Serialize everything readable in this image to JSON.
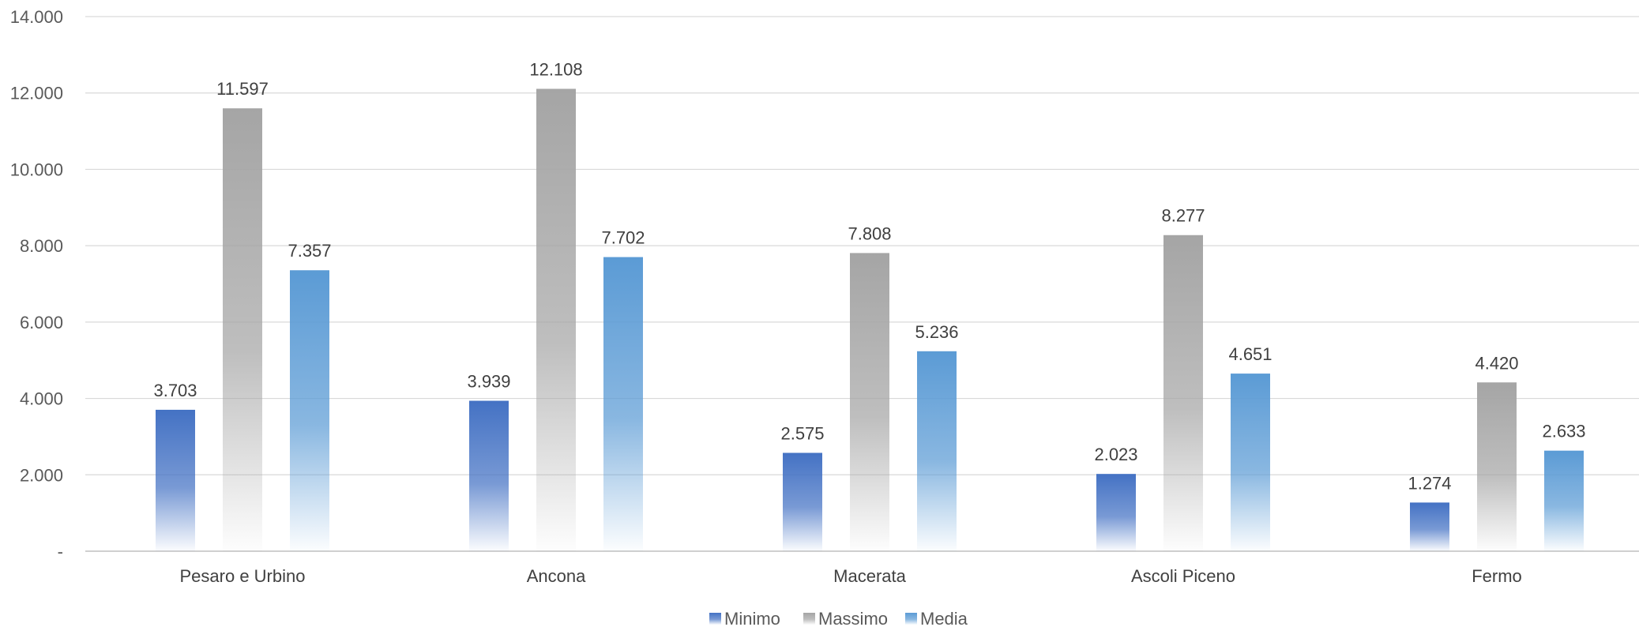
{
  "chart_data": {
    "type": "bar",
    "title": "",
    "xlabel": "",
    "ylabel": "",
    "categories": [
      "Pesaro e Urbino",
      "Ancona",
      "Macerata",
      "Ascoli Piceno",
      "Fermo"
    ],
    "series": [
      {
        "name": "Minimo",
        "values": [
          3703,
          3939,
          2575,
          2023,
          1274
        ],
        "labels": [
          "3.703",
          "3.939",
          "2.575",
          "2.023",
          "1.274"
        ],
        "color": "#4472C4"
      },
      {
        "name": "Massimo",
        "values": [
          11597,
          12108,
          7808,
          8277,
          4420
        ],
        "labels": [
          "11.597",
          "12.108",
          "7.808",
          "8.277",
          "4.420"
        ],
        "color": "#A5A5A5"
      },
      {
        "name": "Media",
        "values": [
          7357,
          7702,
          5236,
          4651,
          2633
        ],
        "labels": [
          "7.357",
          "7.702",
          "5.236",
          "4.651",
          "2.633"
        ],
        "color": "#5B9BD5"
      }
    ],
    "ylim": [
      0,
      14000
    ],
    "yticks": [
      {
        "value": 0,
        "label": "-"
      },
      {
        "value": 2000,
        "label": "2.000"
      },
      {
        "value": 4000,
        "label": "4.000"
      },
      {
        "value": 6000,
        "label": "6.000"
      },
      {
        "value": 8000,
        "label": "8.000"
      },
      {
        "value": 10000,
        "label": "10.000"
      },
      {
        "value": 12000,
        "label": "12.000"
      },
      {
        "value": 14000,
        "label": "14.000"
      }
    ],
    "grid": true,
    "legend_position": "bottom"
  }
}
